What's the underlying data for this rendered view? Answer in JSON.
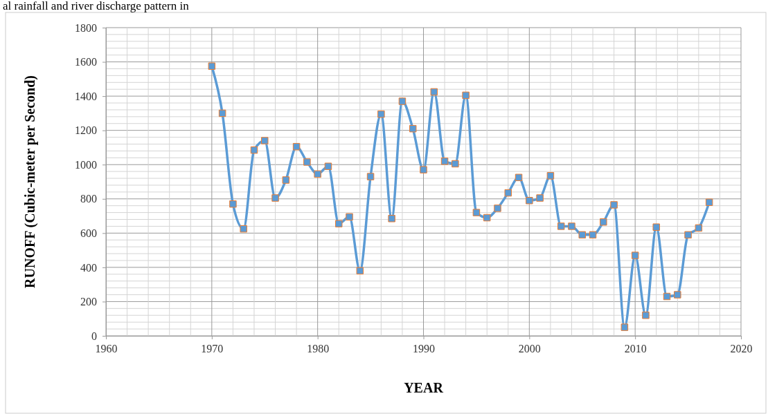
{
  "chart_data": {
    "type": "line",
    "xlabel": "YEAR",
    "ylabel": "RUNOFF (Cubic-meter per Second)",
    "annotations": [
      "al rainfall and river discharge pattern in"
    ],
    "x": [
      1970,
      1971,
      1972,
      1973,
      1974,
      1975,
      1976,
      1977,
      1978,
      1979,
      1980,
      1981,
      1982,
      1983,
      1984,
      1985,
      1986,
      1987,
      1988,
      1989,
      1990,
      1991,
      1992,
      1993,
      1994,
      1995,
      1996,
      1997,
      1998,
      1999,
      2000,
      2001,
      2002,
      2003,
      2004,
      2005,
      2006,
      2007,
      2008,
      2009,
      2010,
      2011,
      2012,
      2013,
      2014,
      2015,
      2016,
      2017
    ],
    "series": [
      {
        "color": "#5b9bd5",
        "values": [
          1575,
          1300,
          770,
          625,
          1085,
          1140,
          805,
          910,
          1105,
          1015,
          945,
          990,
          655,
          695,
          380,
          930,
          1295,
          685,
          1370,
          1210,
          970,
          1425,
          1020,
          1005,
          1405,
          720,
          690,
          745,
          835,
          925,
          790,
          805,
          935,
          640,
          640,
          590,
          590,
          665,
          765,
          50,
          470,
          120,
          635,
          230,
          240,
          590,
          630,
          780
        ]
      }
    ],
    "xlim": [
      1960,
      2020
    ],
    "xticks": [
      1960,
      1970,
      1980,
      1990,
      2000,
      2010,
      2020
    ],
    "ylim": [
      0,
      1800
    ],
    "yticks": [
      0,
      200,
      400,
      600,
      800,
      1000,
      1200,
      1400,
      1600,
      1800
    ],
    "grid": true,
    "marker": "square",
    "line_style": "solid"
  }
}
